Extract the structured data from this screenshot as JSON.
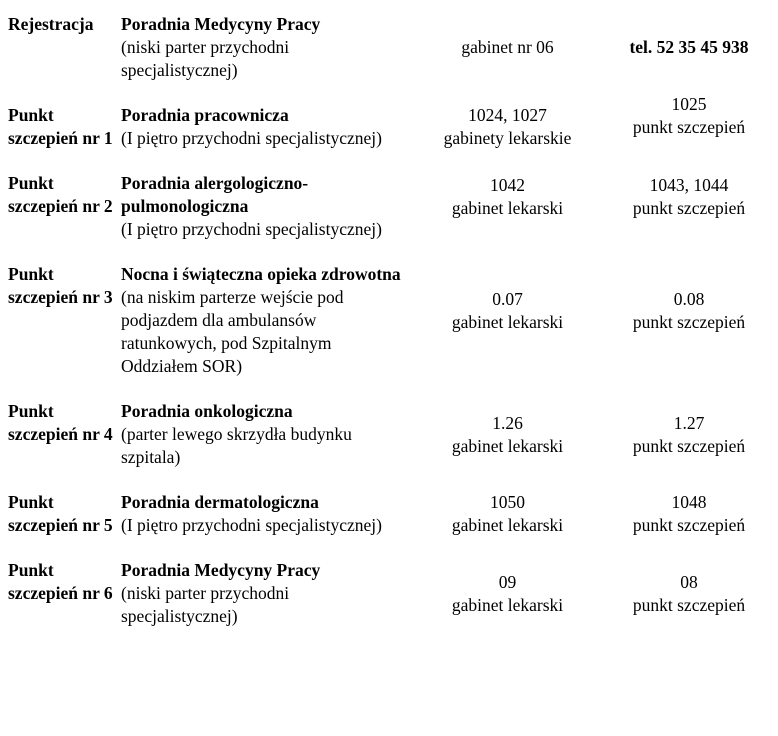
{
  "document": {
    "background_color": "#ffffff",
    "text_color": "#000000",
    "rows": [
      {
        "label": "Rejestracja",
        "clinic": "Poradnia Medycyny Pracy",
        "location": "(niski parter przychodni specjalistycznej)",
        "room": "gabinet nr 06",
        "room_caption": "",
        "point": "tel. 52 35 45 938",
        "point_caption": "",
        "point_bold": true
      },
      {
        "label": "Punkt szczepień nr 1",
        "clinic": "Poradnia pracownicza",
        "location": "(I piętro przychodni specjalistycznej)",
        "room": "1024, 1027",
        "room_caption": "gabinety lekarskie",
        "point": "1025",
        "point_caption": "punkt szczepień",
        "point_bold": false
      },
      {
        "label": "Punkt szczepień nr 2",
        "clinic": "Poradnia alergologiczno-pulmonologiczna",
        "location": "(I piętro przychodni specjalistycznej)",
        "room": "1042",
        "room_caption": "gabinet lekarski",
        "point": "1043, 1044",
        "point_caption": "punkt szczepień",
        "point_bold": false
      },
      {
        "label": "Punkt szczepień nr 3",
        "clinic": "Nocna i świąteczna opieka zdrowotna",
        "location": "(na niskim parterze wejście pod podjazdem dla ambulansów ratunkowych, pod Szpitalnym Oddziałem SOR)",
        "room": "0.07",
        "room_caption": "gabinet lekarski",
        "point": "0.08",
        "point_caption": "punkt szczepień",
        "point_bold": false
      },
      {
        "label": "Punkt szczepień nr 4",
        "clinic": "Poradnia onkologiczna",
        "location": "(parter lewego skrzydła budynku szpitala)",
        "room": "1.26",
        "room_caption": "gabinet lekarski",
        "point": "1.27",
        "point_caption": "punkt szczepień",
        "point_bold": false
      },
      {
        "label": "Punkt szczepień nr 5",
        "clinic": "Poradnia dermatologiczna",
        "location": "(I piętro przychodni specjalistycznej)",
        "room": "1050",
        "room_caption": "gabinet lekarski",
        "point": "1048",
        "point_caption": "punkt szczepień",
        "point_bold": false
      },
      {
        "label": "Punkt szczepień nr 6",
        "clinic": "Poradnia Medycyny Pracy",
        "location": "(niski parter przychodni specjalistycznej)",
        "room": "09",
        "room_caption": "gabinet lekarski",
        "point": "08",
        "point_caption": "punkt szczepień",
        "point_bold": false
      }
    ]
  }
}
